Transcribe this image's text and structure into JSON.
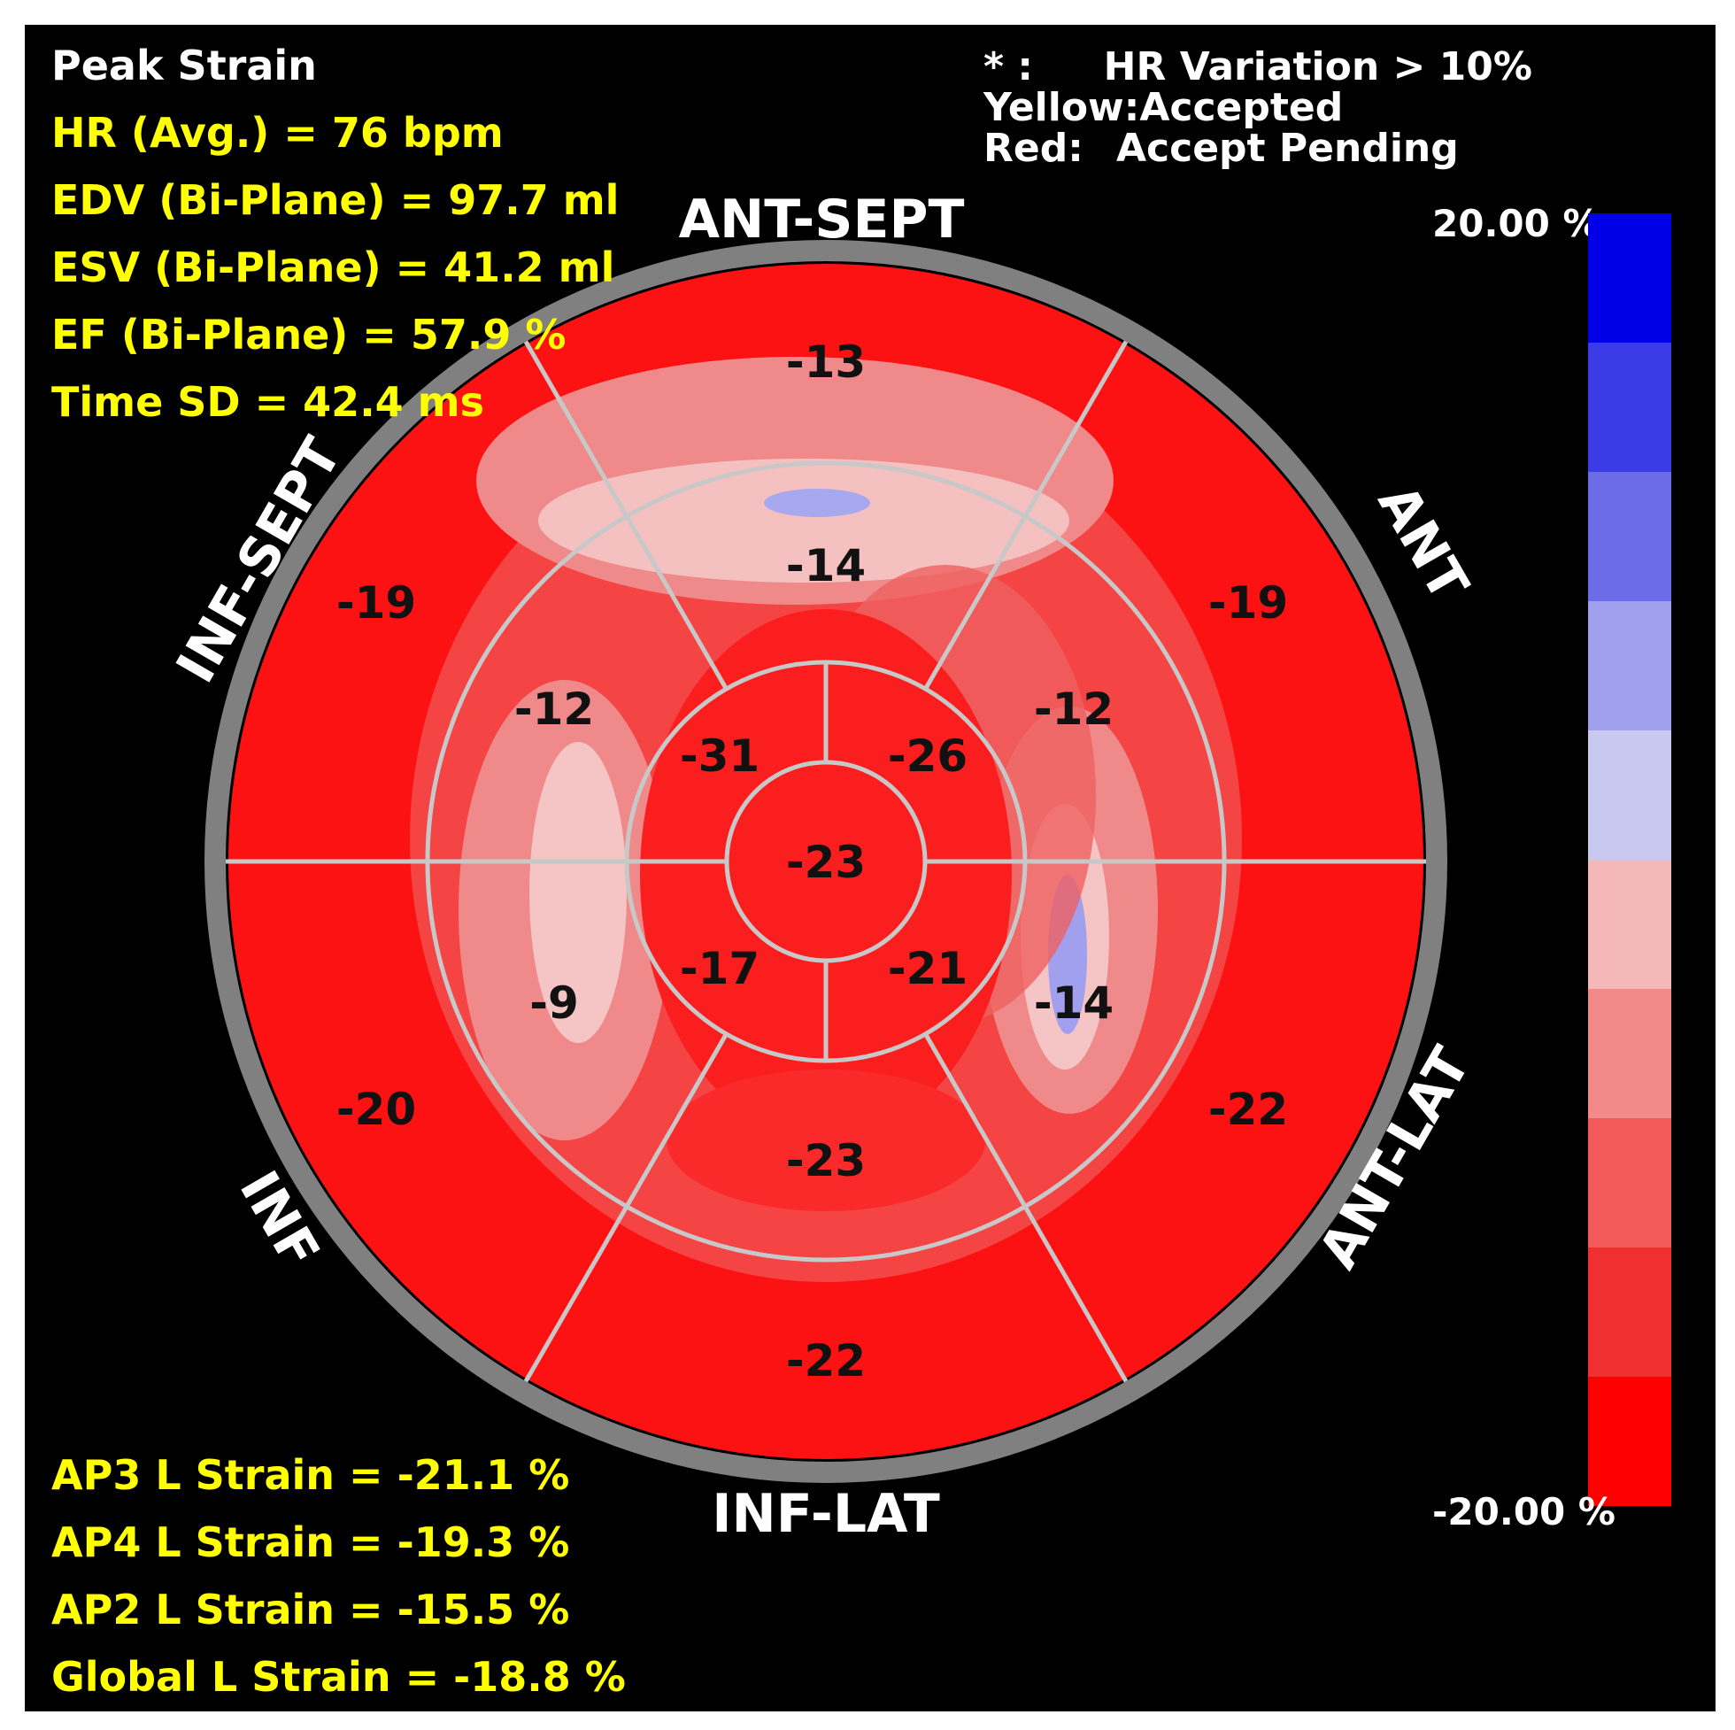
{
  "header": {
    "title": "Peak Strain",
    "stats": [
      "HR (Avg.) = 76 bpm",
      "EDV (Bi-Plane) = 97.7 ml",
      "ESV (Bi-Plane) = 41.2 ml",
      "EF (Bi-Plane) = 57.9 %",
      "Time SD = 42.4 ms"
    ]
  },
  "legend": {
    "rows": [
      {
        "key": "* :",
        "value": "HR Variation > 10%"
      },
      {
        "key": "Yellow:",
        "value": "Accepted"
      },
      {
        "key": "Red:",
        "value": "Accept Pending"
      }
    ]
  },
  "colorbar": {
    "max_label": "20.00 %",
    "min_label": "-20.00 %",
    "bands": [
      "#0000e8",
      "#3c3ce6",
      "#6c6ce8",
      "#a0a0ee",
      "#c8c8f0",
      "#f5b8b8",
      "#f38a8a",
      "#f25a5a",
      "#f03030",
      "#ff0000"
    ]
  },
  "walls": {
    "top": "ANT-SEPT",
    "upper_right": "ANT",
    "lower_right": "ANT-LAT",
    "bottom": "INF-LAT",
    "lower_left": "INF",
    "upper_left": "INF-SEPT"
  },
  "segments": {
    "basal": [
      "-13",
      "-19",
      "-22",
      "-22",
      "-20",
      "-19"
    ],
    "mid": [
      "-14",
      "-12",
      "-14",
      "-23",
      "-9",
      "-12"
    ],
    "apical": [
      "-26",
      "-21",
      "-17",
      "-31"
    ],
    "apex": "-23"
  },
  "footer": {
    "strains": [
      "AP3 L Strain = -21.1 %",
      "AP4 L Strain = -19.3 %",
      "AP2 L Strain = -15.5 %",
      "Global L Strain = -18.8 %"
    ]
  }
}
